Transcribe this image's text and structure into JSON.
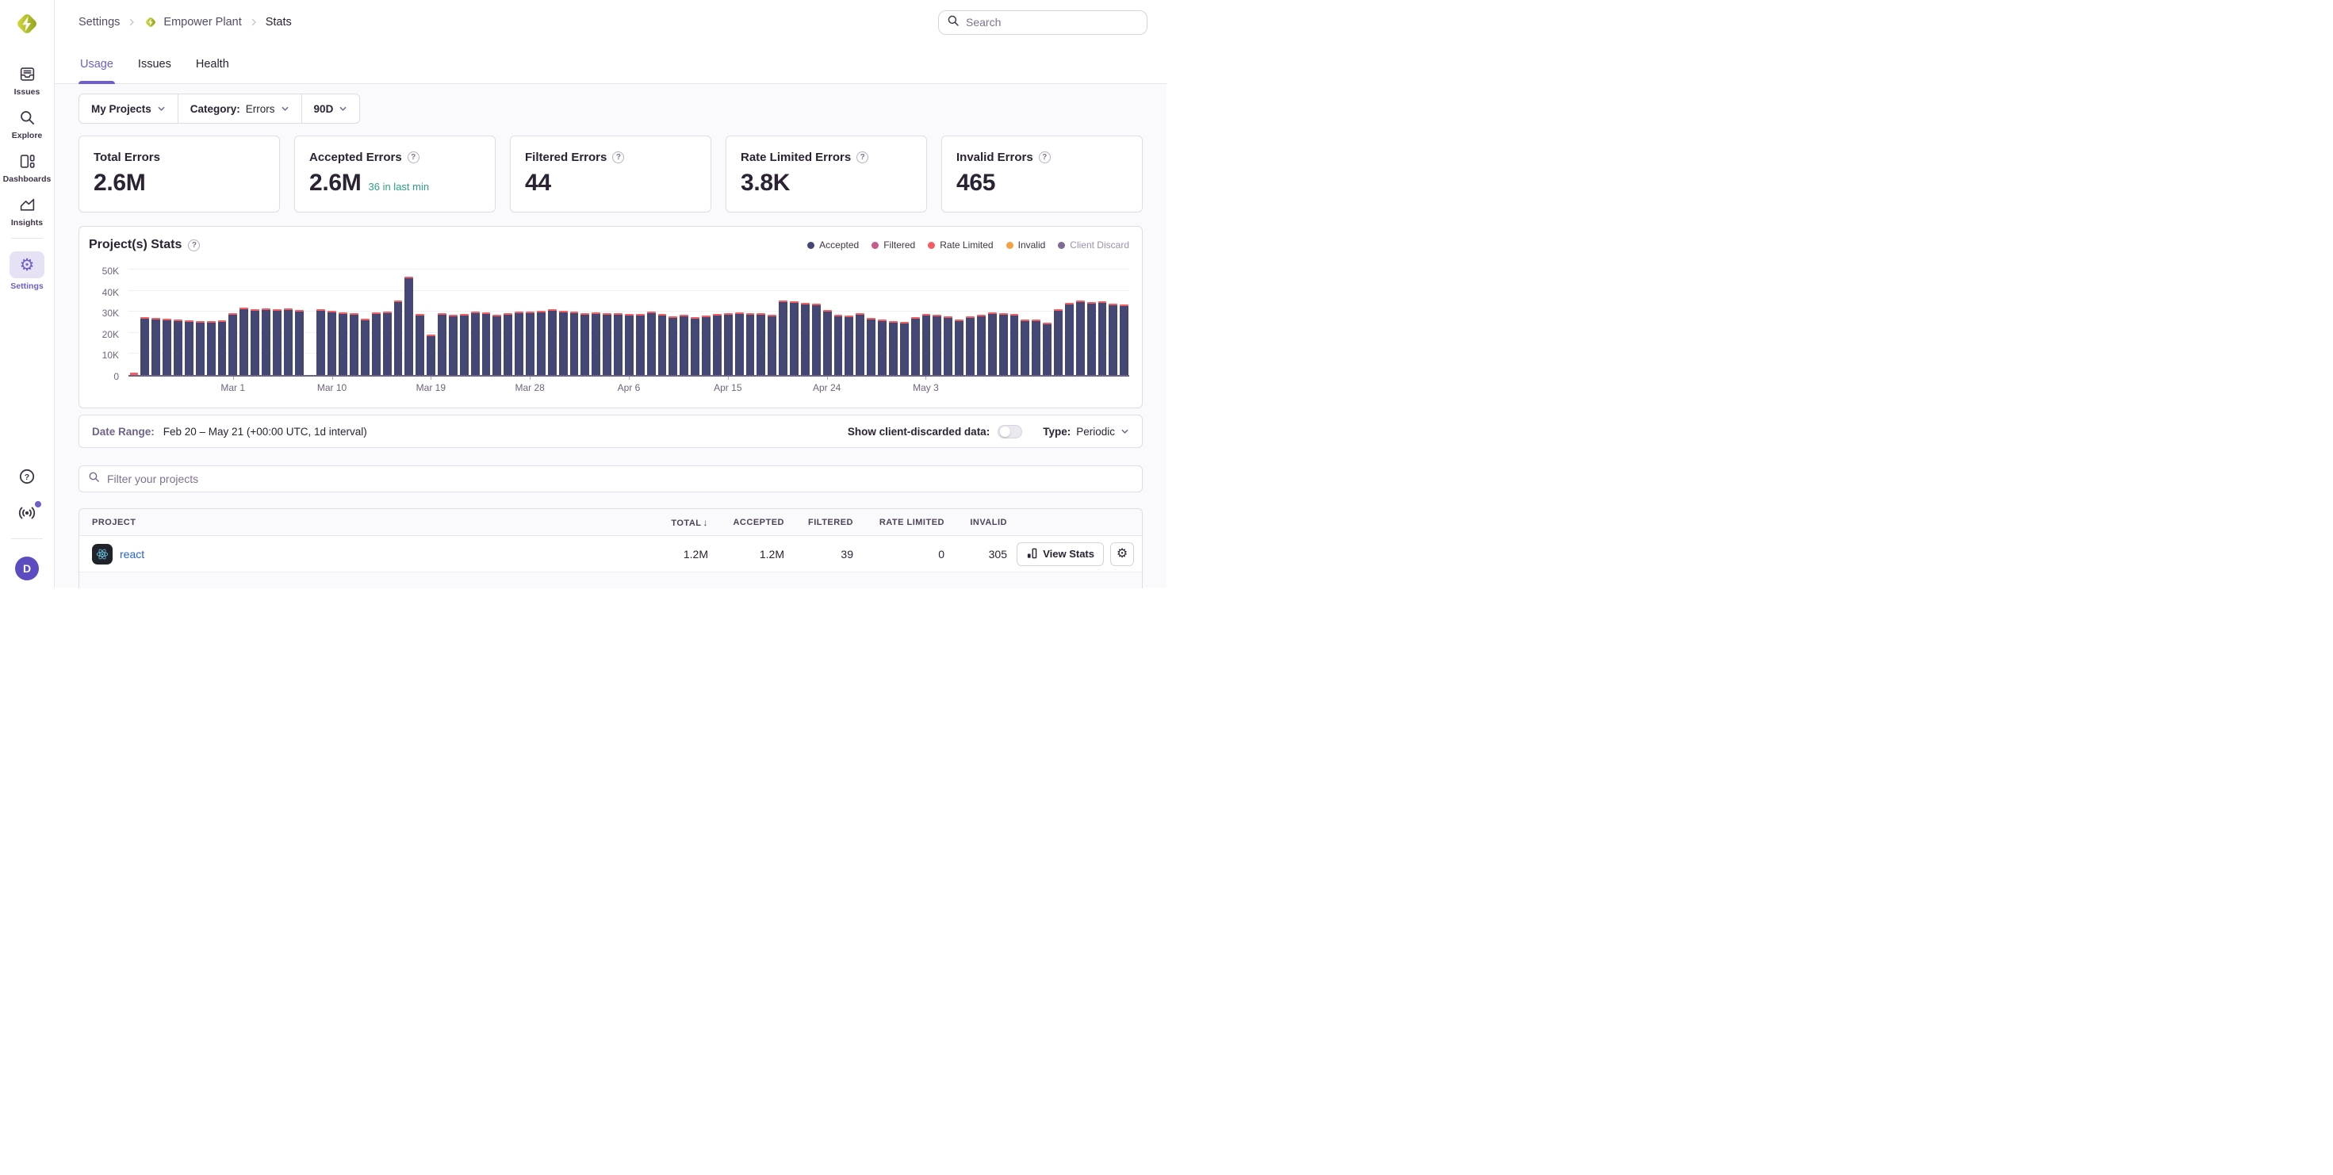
{
  "app": {
    "search_placeholder": "Search"
  },
  "sidebar": {
    "logo_icon": "sentry-logo",
    "items": [
      {
        "label": "Issues",
        "icon": "issues-icon",
        "active": false
      },
      {
        "label": "Explore",
        "icon": "explore-icon",
        "active": false
      },
      {
        "label": "Dashboards",
        "icon": "dashboards-icon",
        "active": false
      },
      {
        "label": "Insights",
        "icon": "insights-icon",
        "active": false
      },
      {
        "label": "Settings",
        "icon": "gear-icon",
        "active": true
      }
    ],
    "bottom_icons": [
      "help-icon",
      "broadcast-icon"
    ],
    "has_notification_dot": true,
    "avatar_initial": "D"
  },
  "breadcrumb": {
    "items": [
      "Settings",
      "Empower Plant",
      "Stats"
    ]
  },
  "tabs": [
    {
      "label": "Usage",
      "active": true
    },
    {
      "label": "Issues",
      "active": false
    },
    {
      "label": "Health",
      "active": false
    }
  ],
  "filters": {
    "projects": "My Projects",
    "category_label": "Category:",
    "category_value": "Errors",
    "period": "90D"
  },
  "cards": [
    {
      "title": "Total Errors",
      "value": "2.6M"
    },
    {
      "title": "Accepted Errors",
      "value": "2.6M",
      "sub": "36 in last min"
    },
    {
      "title": "Filtered Errors",
      "value": "44"
    },
    {
      "title": "Rate Limited Errors",
      "value": "3.8K"
    },
    {
      "title": "Invalid Errors",
      "value": "465"
    }
  ],
  "chart": {
    "title": "Project(s) Stats"
  },
  "chart_data": {
    "type": "bar",
    "title": "Project(s) Stats",
    "unit": "events per day (thousands)",
    "start": "Feb 20",
    "end": "May 21",
    "interval": "1d",
    "ylim": [
      0,
      50000
    ],
    "y_ticks": [
      "0",
      "10K",
      "20K",
      "30K",
      "40K",
      "50K"
    ],
    "x_tick_labels": [
      "Mar 1",
      "Mar 10",
      "Mar 19",
      "Mar 28",
      "Apr 6",
      "Apr 15",
      "Apr 24",
      "May 3"
    ],
    "x_tick_indices": [
      9,
      18,
      27,
      36,
      45,
      54,
      63,
      72
    ],
    "legend": [
      {
        "name": "Accepted",
        "color": "#444674",
        "muted": false
      },
      {
        "name": "Filtered",
        "color": "#C65B8C",
        "muted": false
      },
      {
        "name": "Rate Limited",
        "color": "#F55E61",
        "muted": false
      },
      {
        "name": "Invalid",
        "color": "#F2A144",
        "muted": false
      },
      {
        "name": "Client Discard",
        "color": "#7E6C94",
        "muted": true
      }
    ],
    "bar_color": "#444674",
    "cap_color": "#F55E61",
    "values_k": [
      1.2,
      27.6,
      27.2,
      26.8,
      26.2,
      25.8,
      25.6,
      25.7,
      26.1,
      29.4,
      31.8,
      31.3,
      31.5,
      31.2,
      31.4,
      30.9,
      null,
      31.3,
      30.6,
      29.6,
      29.3,
      26.6,
      29.7,
      29.9,
      35.2,
      46.8,
      28.8,
      19.2,
      29.5,
      28.4,
      28.9,
      29.9,
      29.6,
      28.7,
      29.3,
      29.9,
      30.0,
      30.6,
      31.1,
      30.3,
      30.0,
      29.2,
      29.8,
      29.3,
      29.4,
      28.9,
      29.1,
      30.2,
      28.9,
      28.0,
      28.4,
      27.6,
      28.2,
      29.1,
      29.5,
      29.8,
      29.4,
      29.2,
      28.6,
      35.3,
      34.9,
      34.3,
      33.9,
      30.9,
      28.7,
      28.2,
      29.4,
      27.2,
      26.3,
      25.6,
      25.1,
      27.4,
      29.0,
      28.4,
      28.0,
      26.2,
      28.0,
      28.4,
      29.7,
      29.4,
      29.0,
      26.5,
      26.2,
      24.9,
      31.2,
      34.4,
      35.3,
      34.6,
      34.8,
      33.9,
      33.5
    ]
  },
  "date_row": {
    "label": "Date Range:",
    "value": "Feb 20 – May 21 (+00:00 UTC, 1d interval)",
    "toggle_label": "Show client-discarded data:",
    "toggle_on": false,
    "type_label": "Type:",
    "type_value": "Periodic"
  },
  "project_filter": {
    "placeholder": "Filter your projects"
  },
  "table": {
    "columns": [
      "Project",
      "Total",
      "Accepted",
      "Filtered",
      "Rate Limited",
      "Invalid"
    ],
    "sorted_by": "Total",
    "sort_indicator": "↓",
    "rows": [
      {
        "project": "react",
        "total": "1.2M",
        "accepted": "1.2M",
        "filtered": "39",
        "rate_limited": "0",
        "invalid": "305",
        "action": "View Stats"
      }
    ]
  },
  "colors": {
    "accent": "#6C5FC7",
    "link": "#2562D4",
    "success_green": "#2BA185",
    "bar_navy": "#444674",
    "rate_limited_red": "#F55E61",
    "avatar_bg": "#5B4CC0",
    "logo_light": "#D6DC3F",
    "logo_dark": "#8FA019",
    "page_bg": "#FAF9FB",
    "border": "#E0DCE5"
  }
}
